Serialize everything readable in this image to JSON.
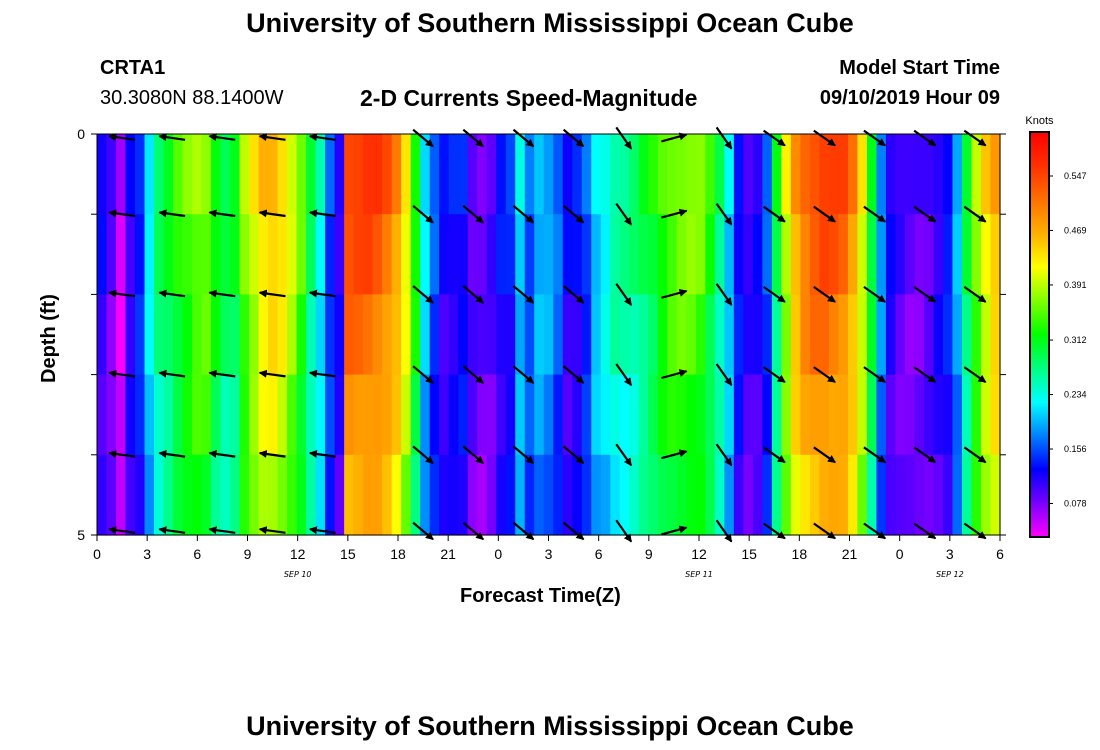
{
  "page": {
    "title_top": "University of Southern Mississippi Ocean Cube",
    "title_bottom": "University of Southern Mississippi Ocean Cube",
    "station_id": "CRTA1",
    "station_coords": "30.3080N 88.1400W",
    "plot_title": "2-D Currents Speed-Magnitude",
    "model_start_label": "Model Start Time",
    "model_start_value": "09/10/2019 Hour 09"
  },
  "colors": {
    "colormap": [
      "#ff00ff",
      "#7a00ff",
      "#0000ff",
      "#0080ff",
      "#00ffff",
      "#00ff80",
      "#00ff00",
      "#80ff00",
      "#ffff00",
      "#ffb000",
      "#ff7000",
      "#ff3000",
      "#ff0000"
    ],
    "arrow": "#000000"
  },
  "chart_data": {
    "type": "heatmap",
    "xlabel": "Forecast Time(Z)",
    "ylabel": "Depth (ft)",
    "x_tick_labels": [
      "0",
      "3",
      "6",
      "9",
      "12",
      "15",
      "18",
      "21",
      "0",
      "3",
      "6",
      "9",
      "12",
      "15",
      "18",
      "21",
      "0",
      "3",
      "6"
    ],
    "date_labels": [
      {
        "text": "SEP 10",
        "hour_index": 12
      },
      {
        "text": "SEP 11",
        "hour_index": 36
      },
      {
        "text": "SEP 12",
        "hour_index": 51
      }
    ],
    "x_range_hours": [
      0,
      54
    ],
    "y_tick_labels": [
      "0",
      "5"
    ],
    "ylim": [
      0,
      5
    ],
    "colorbar": {
      "unit": "Knots",
      "tick_labels": [
        "0.547",
        "0.469",
        "0.391",
        "0.312",
        "0.234",
        "0.156",
        "0.078"
      ],
      "tick_values": [
        0.547,
        0.469,
        0.391,
        0.312,
        0.234,
        0.156,
        0.078
      ],
      "range": [
        0.03,
        0.61
      ]
    },
    "speed_profile_knots": [
      0.12,
      0.09,
      0.05,
      0.12,
      0.15,
      0.23,
      0.29,
      0.31,
      0.34,
      0.36,
      0.38,
      0.38,
      0.33,
      0.3,
      0.31,
      0.38,
      0.42,
      0.46,
      0.47,
      0.45,
      0.41,
      0.36,
      0.29,
      0.24,
      0.16,
      0.12,
      0.56,
      0.56,
      0.56,
      0.55,
      0.53,
      0.5,
      0.44,
      0.34,
      0.22,
      0.16,
      0.12,
      0.13,
      0.14,
      0.1,
      0.09,
      0.1,
      0.13,
      0.14,
      0.22,
      0.17,
      0.21,
      0.2,
      0.17,
      0.12,
      0.13,
      0.16,
      0.22,
      0.24,
      0.27,
      0.27,
      0.28,
      0.3,
      0.32,
      0.35,
      0.37,
      0.38,
      0.38,
      0.37,
      0.33,
      0.28,
      0.22,
      0.14,
      0.11,
      0.12,
      0.16,
      0.3,
      0.41,
      0.49,
      0.53,
      0.55,
      0.56,
      0.55,
      0.54,
      0.5,
      0.43,
      0.32,
      0.19,
      0.12,
      0.1,
      0.09,
      0.09,
      0.1,
      0.12,
      0.14,
      0.2,
      0.3,
      0.38,
      0.44,
      0.48
    ],
    "vector_rows_depth_ft": [
      0.05,
      1.0,
      2.0,
      3.0,
      4.0,
      4.95
    ],
    "vector_columns_hour_index": [
      1,
      4,
      7,
      10,
      13,
      19,
      22,
      25,
      28,
      31,
      34,
      37,
      40,
      43,
      46,
      49,
      52
    ]
  }
}
